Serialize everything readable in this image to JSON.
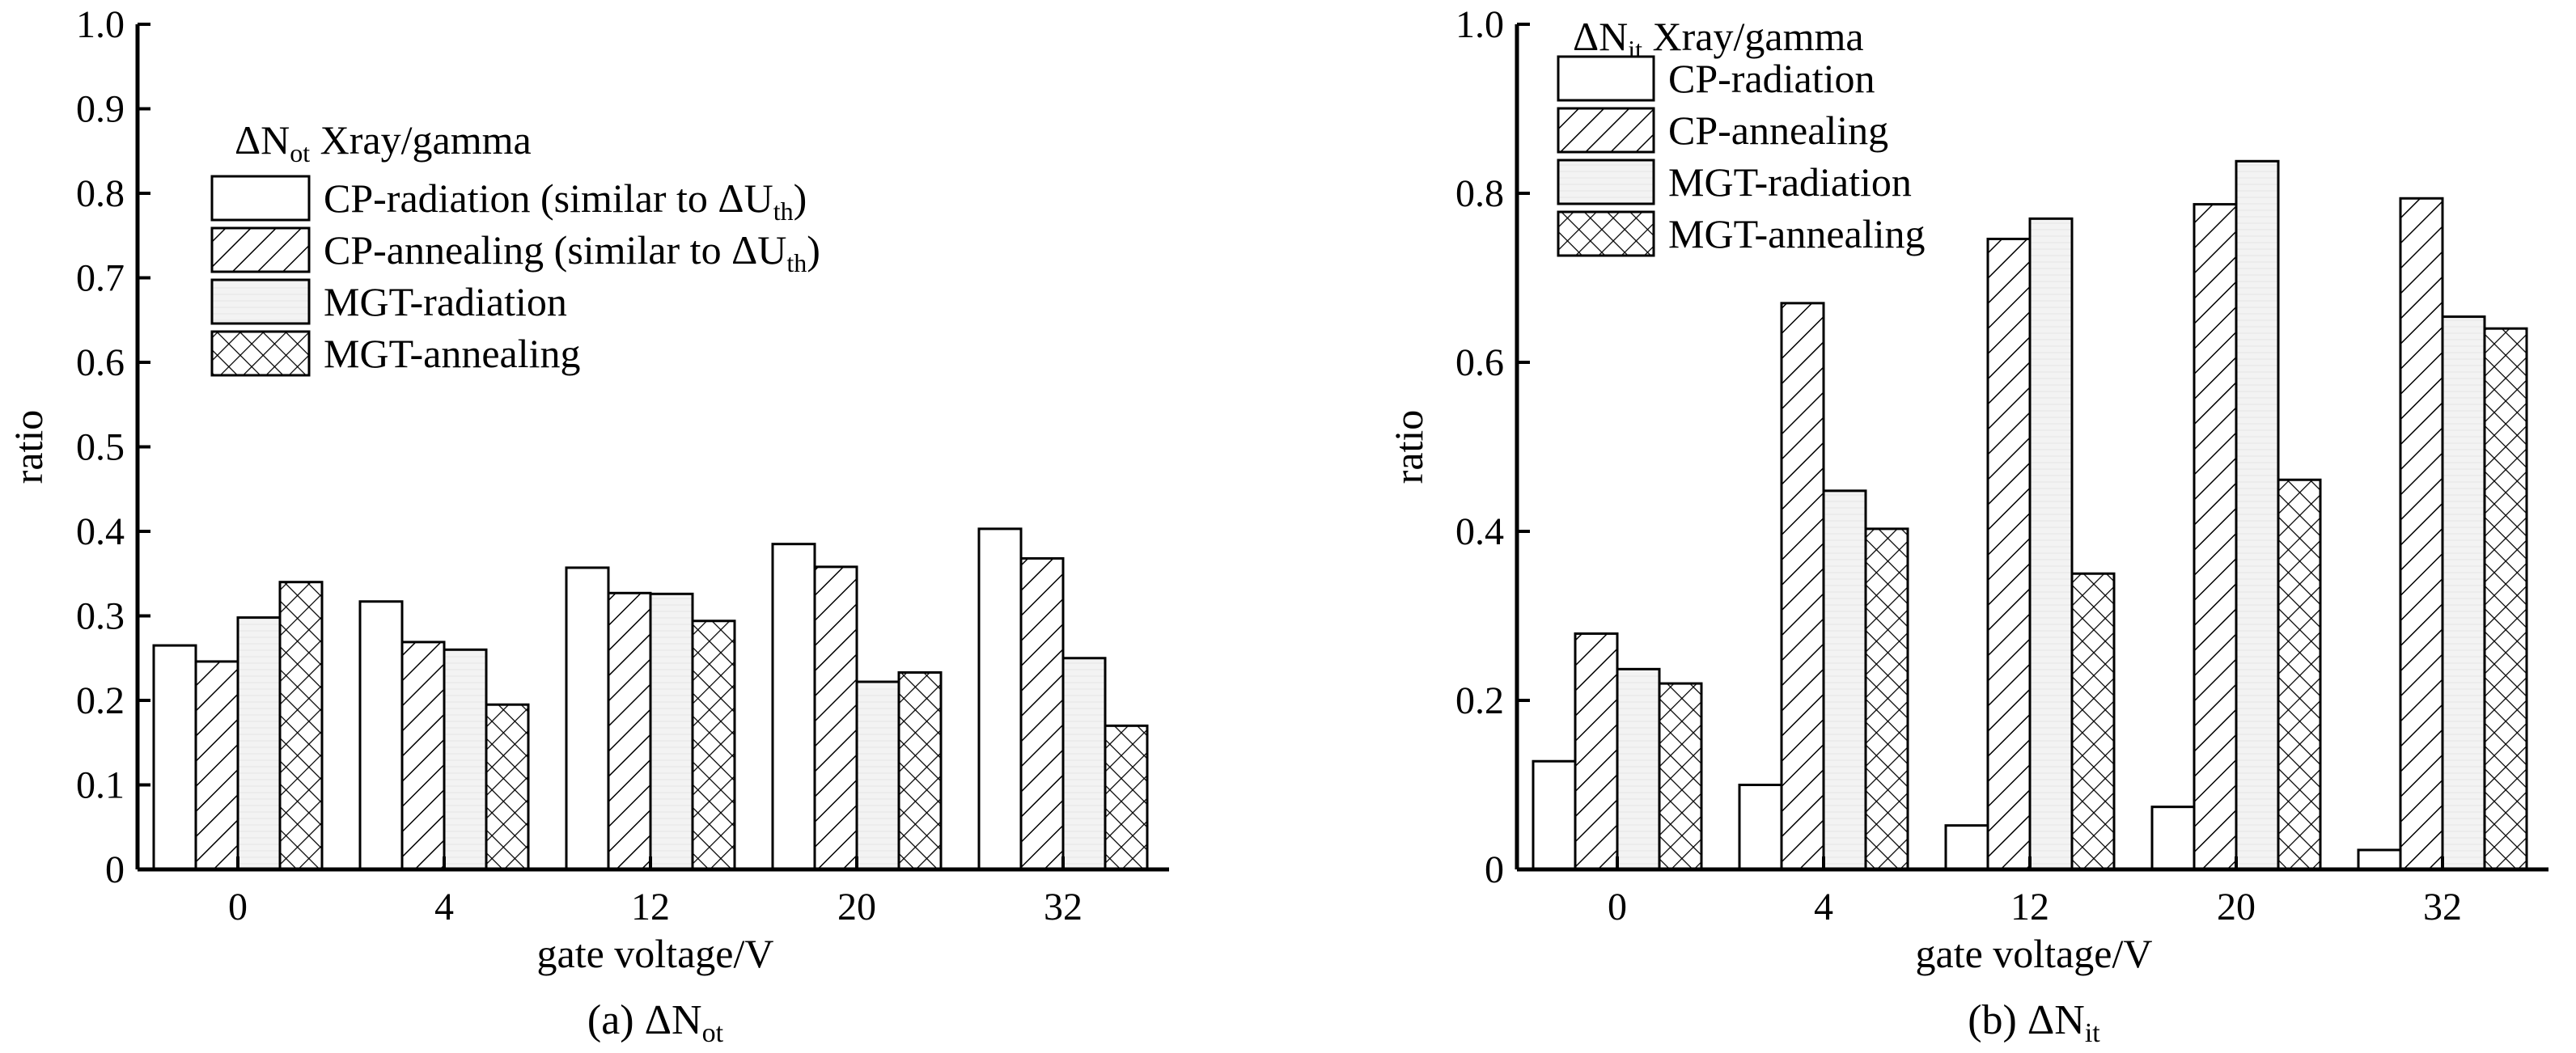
{
  "charts": [
    {
      "chart_data": {
        "type": "bar",
        "categories": [
          "0",
          "4",
          "12",
          "20",
          "32"
        ],
        "series": [
          {
            "name": "CP-radiation (similar to ΔU",
            "name_sub": "th",
            "name_suffix": ")",
            "pattern": "plain",
            "values": [
              0.265,
              0.317,
              0.357,
              0.385,
              0.403
            ]
          },
          {
            "name": "CP-annealing (similar to ΔU",
            "name_sub": "th",
            "name_suffix": ")",
            "pattern": "diag",
            "values": [
              0.246,
              0.269,
              0.327,
              0.358,
              0.368
            ]
          },
          {
            "name": "MGT-radiation",
            "name_sub": "",
            "name_suffix": "",
            "pattern": "gray",
            "values": [
              0.298,
              0.26,
              0.326,
              0.222,
              0.25
            ]
          },
          {
            "name": "MGT-annealing",
            "name_sub": "",
            "name_suffix": "",
            "pattern": "cross",
            "values": [
              0.34,
              0.195,
              0.294,
              0.233,
              0.17
            ]
          }
        ],
        "ylim": [
          0,
          1.0
        ],
        "yticks": [
          "0",
          "0.1",
          "0.2",
          "0.3",
          "0.4",
          "0.5",
          "0.6",
          "0.7",
          "0.8",
          "0.9",
          "1.0"
        ],
        "xlabel": "gate voltage/V",
        "ylabel": "ratio",
        "legend_title": {
          "prefix": "ΔN",
          "sub": "ot",
          "suffix": " Xray/gamma"
        },
        "legend_position": "upper-center"
      },
      "caption": {
        "prefix": "(a) ΔN",
        "sub": "ot"
      }
    },
    {
      "chart_data": {
        "type": "bar",
        "categories": [
          "0",
          "4",
          "12",
          "20",
          "32"
        ],
        "series": [
          {
            "name": "CP-radiation",
            "name_sub": "",
            "name_suffix": "",
            "pattern": "plain",
            "values": [
              0.128,
              0.1,
              0.052,
              0.074,
              0.023
            ]
          },
          {
            "name": "CP-annealing",
            "name_sub": "",
            "name_suffix": "",
            "pattern": "diag",
            "values": [
              0.279,
              0.67,
              0.746,
              0.787,
              0.794
            ]
          },
          {
            "name": "MGT-radiation",
            "name_sub": "",
            "name_suffix": "",
            "pattern": "gray",
            "values": [
              0.237,
              0.448,
              0.77,
              0.838,
              0.654
            ]
          },
          {
            "name": "MGT-annealing",
            "name_sub": "",
            "name_suffix": "",
            "pattern": "cross",
            "values": [
              0.22,
              0.403,
              0.35,
              0.461,
              0.64
            ]
          }
        ],
        "ylim": [
          0,
          1.0
        ],
        "yticks": [
          "0",
          "0.2",
          "0.4",
          "0.6",
          "0.8",
          "1.0"
        ],
        "xlabel": "gate voltage/V",
        "ylabel": "ratio",
        "legend_title": {
          "prefix": "ΔN",
          "sub": "it",
          "suffix": " Xray/gamma"
        },
        "legend_position": "upper-left"
      },
      "caption": {
        "prefix": "(b) ΔN",
        "sub": "it"
      }
    }
  ],
  "colors": {
    "bar_fill": "#ffffff",
    "gray_fill": "#f2f2f2",
    "stroke": "#000000"
  }
}
